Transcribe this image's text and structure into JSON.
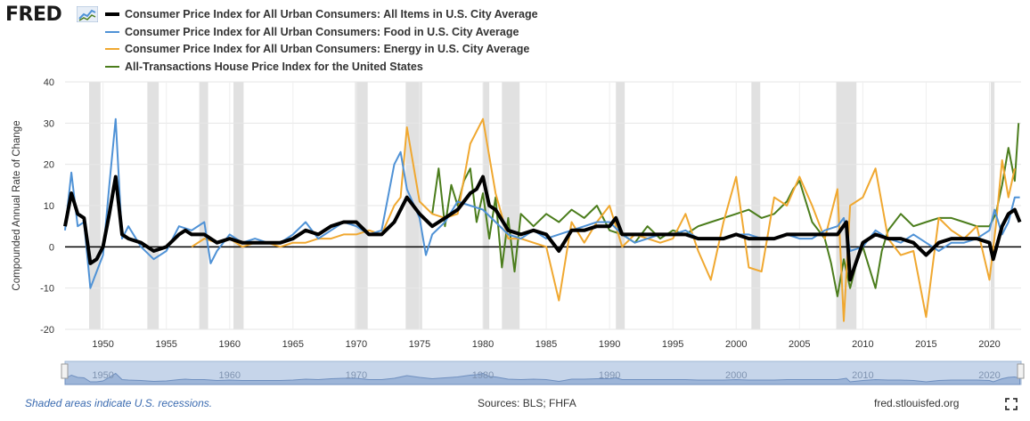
{
  "header": {
    "logo_text": "FRED",
    "logo_icon": "line-chart-icon"
  },
  "legend": [
    {
      "label": "Consumer Price Index for All Urban Consumers: All Items in U.S. City Average",
      "color": "#000000",
      "stroke": 4
    },
    {
      "label": "Consumer Price Index for All Urban Consumers: Food in U.S. City Average",
      "color": "#4f92d6",
      "stroke": 2
    },
    {
      "label": "Consumer Price Index for All Urban Consumers: Energy in U.S. City Average",
      "color": "#f0a830",
      "stroke": 2
    },
    {
      "label": "All-Transactions House Price Index for the United States",
      "color": "#4b7d1c",
      "stroke": 2
    }
  ],
  "footer": {
    "note": "Shaded areas indicate U.S. recessions.",
    "sources": "Sources: BLS; FHFA",
    "site": "fred.stlouisfed.org",
    "fullscreen_icon": "fullscreen-icon"
  },
  "navigator_labels": [
    "1950",
    "1960",
    "1970",
    "1980",
    "1990",
    "2000",
    "2010",
    "2020"
  ],
  "chart_data": {
    "type": "line",
    "ylabel": "Compounded Annual Rate of Change",
    "xlabel": "",
    "xlim": [
      1947.0,
      2022.5
    ],
    "ylim": [
      -20,
      40
    ],
    "yticks": [
      -20,
      -10,
      0,
      10,
      20,
      30,
      40
    ],
    "xticks": [
      1950,
      1955,
      1960,
      1965,
      1970,
      1975,
      1980,
      1985,
      1990,
      1995,
      2000,
      2005,
      2010,
      2015,
      2020
    ],
    "grid": true,
    "legend_position": "top",
    "recessions": [
      [
        1948.9,
        1949.8
      ],
      [
        1953.5,
        1954.4
      ],
      [
        1957.6,
        1958.3
      ],
      [
        1960.3,
        1961.1
      ],
      [
        1969.9,
        1970.9
      ],
      [
        1973.9,
        1975.2
      ],
      [
        1980.0,
        1980.5
      ],
      [
        1981.5,
        1982.9
      ],
      [
        1990.5,
        1991.2
      ],
      [
        2001.2,
        2001.9
      ],
      [
        2007.9,
        2009.5
      ],
      [
        2020.1,
        2020.4
      ]
    ],
    "series": [
      {
        "name": "Consumer Price Index for All Urban Consumers: All Items in U.S. City Average",
        "color": "#000000",
        "x": [
          1947.0,
          1947.5,
          1948.0,
          1948.5,
          1949.0,
          1949.5,
          1950.0,
          1950.5,
          1951.0,
          1951.5,
          1952.0,
          1953.0,
          1954.0,
          1955.0,
          1956.0,
          1956.5,
          1957.0,
          1958.0,
          1959.0,
          1960.0,
          1961.0,
          1962.0,
          1963.0,
          1964.0,
          1965.0,
          1966.0,
          1967.0,
          1968.0,
          1969.0,
          1970.0,
          1971.0,
          1972.0,
          1973.0,
          1973.5,
          1974.0,
          1975.0,
          1976.0,
          1977.0,
          1978.0,
          1979.0,
          1979.5,
          1980.0,
          1980.5,
          1981.0,
          1982.0,
          1983.0,
          1984.0,
          1985.0,
          1986.0,
          1987.0,
          1988.0,
          1989.0,
          1990.0,
          1990.5,
          1991.0,
          1992.0,
          1993.0,
          1994.0,
          1995.0,
          1996.0,
          1997.0,
          1998.0,
          1999.0,
          2000.0,
          2001.0,
          2002.0,
          2003.0,
          2004.0,
          2005.0,
          2006.0,
          2007.0,
          2008.0,
          2008.7,
          2009.0,
          2010.0,
          2011.0,
          2012.0,
          2013.0,
          2014.0,
          2015.0,
          2016.0,
          2017.0,
          2018.0,
          2019.0,
          2020.0,
          2020.3,
          2021.0,
          2021.5,
          2022.0,
          2022.4
        ],
        "y": [
          5,
          13,
          8,
          7,
          -4,
          -3,
          0,
          8,
          17,
          3,
          2,
          1,
          -1,
          0,
          3,
          4,
          3,
          3,
          1,
          2,
          1,
          1,
          1,
          1,
          2,
          4,
          3,
          5,
          6,
          6,
          3,
          3,
          6,
          9,
          12,
          8,
          5,
          7,
          9,
          13,
          14,
          17,
          10,
          9,
          4,
          3,
          4,
          3,
          -1,
          4,
          4,
          5,
          5,
          7,
          3,
          3,
          3,
          3,
          3,
          3,
          2,
          2,
          2,
          3,
          2,
          2,
          2,
          3,
          3,
          3,
          3,
          3,
          6,
          -8,
          1,
          3,
          2,
          2,
          1,
          -2,
          1,
          2,
          2,
          2,
          1,
          -3,
          5,
          8,
          9,
          6
        ]
      },
      {
        "name": "Consumer Price Index for All Urban Consumers: Food in U.S. City Average",
        "color": "#4f92d6",
        "x": [
          1947.0,
          1947.5,
          1948.0,
          1948.5,
          1949.0,
          1949.5,
          1950.0,
          1950.5,
          1951.0,
          1951.5,
          1952.0,
          1953.0,
          1954.0,
          1955.0,
          1956.0,
          1957.0,
          1958.0,
          1958.5,
          1959.0,
          1960.0,
          1961.0,
          1962.0,
          1963.0,
          1964.0,
          1965.0,
          1966.0,
          1967.0,
          1968.0,
          1969.0,
          1970.0,
          1971.0,
          1972.0,
          1973.0,
          1973.5,
          1974.0,
          1975.0,
          1975.5,
          1976.0,
          1977.0,
          1978.0,
          1979.0,
          1980.0,
          1981.0,
          1982.0,
          1983.0,
          1984.0,
          1985.0,
          1986.0,
          1987.0,
          1988.0,
          1989.0,
          1990.0,
          1991.0,
          1992.0,
          1993.0,
          1994.0,
          1995.0,
          1996.0,
          1997.0,
          1998.0,
          1999.0,
          2000.0,
          2001.0,
          2002.0,
          2003.0,
          2004.0,
          2005.0,
          2006.0,
          2007.0,
          2008.0,
          2008.5,
          2009.0,
          2010.0,
          2011.0,
          2012.0,
          2013.0,
          2014.0,
          2015.0,
          2016.0,
          2017.0,
          2018.0,
          2019.0,
          2020.0,
          2020.4,
          2021.0,
          2021.5,
          2022.0,
          2022.4
        ],
        "y": [
          4,
          18,
          5,
          6,
          -10,
          -6,
          -2,
          15,
          31,
          2,
          5,
          0,
          -3,
          -1,
          5,
          4,
          6,
          -4,
          -1,
          3,
          1,
          2,
          1,
          1,
          3,
          6,
          2,
          4,
          6,
          5,
          3,
          4,
          20,
          23,
          14,
          7,
          -2,
          3,
          6,
          11,
          10,
          9,
          6,
          3,
          2,
          4,
          2,
          3,
          4,
          5,
          6,
          6,
          3,
          1,
          2,
          3,
          3,
          4,
          2,
          2,
          2,
          3,
          3,
          2,
          2,
          3,
          2,
          2,
          4,
          5,
          7,
          -1,
          0,
          4,
          2,
          1,
          3,
          1,
          -1,
          1,
          1,
          2,
          4,
          9,
          3,
          6,
          12,
          12
        ]
      },
      {
        "name": "Consumer Price Index for All Urban Consumers: Energy in U.S. City Average",
        "color": "#f0a830",
        "x": [
          1957.0,
          1958.0,
          1959.0,
          1960.0,
          1961.0,
          1962.0,
          1963.0,
          1964.0,
          1965.0,
          1966.0,
          1967.0,
          1968.0,
          1969.0,
          1970.0,
          1971.0,
          1972.0,
          1973.0,
          1973.5,
          1974.0,
          1975.0,
          1976.0,
          1977.0,
          1978.0,
          1979.0,
          1980.0,
          1981.0,
          1982.0,
          1983.0,
          1984.0,
          1985.0,
          1986.0,
          1987.0,
          1988.0,
          1989.0,
          1990.0,
          1991.0,
          1992.0,
          1993.0,
          1994.0,
          1995.0,
          1996.0,
          1997.0,
          1998.0,
          1999.0,
          2000.0,
          2001.0,
          2002.0,
          2003.0,
          2004.0,
          2005.0,
          2006.0,
          2007.0,
          2008.0,
          2008.5,
          2009.0,
          2010.0,
          2011.0,
          2012.0,
          2013.0,
          2014.0,
          2015.0,
          2016.0,
          2017.0,
          2018.0,
          2019.0,
          2020.0,
          2020.5,
          2021.0,
          2021.5,
          2022.0
        ],
        "y": [
          0,
          2,
          1,
          2,
          0,
          1,
          1,
          0,
          1,
          1,
          2,
          2,
          3,
          3,
          4,
          3,
          10,
          12,
          29,
          11,
          8,
          7,
          8,
          25,
          31,
          13,
          2,
          2,
          1,
          0,
          -13,
          6,
          1,
          6,
          10,
          0,
          3,
          2,
          1,
          2,
          8,
          -1,
          -8,
          6,
          17,
          -5,
          -6,
          12,
          10,
          17,
          10,
          2,
          14,
          -18,
          10,
          12,
          19,
          2,
          -2,
          -1,
          -17,
          7,
          4,
          2,
          5,
          -8,
          5,
          21,
          12,
          19
        ]
      },
      {
        "name": "All-Transactions House Price Index for the United States",
        "color": "#4b7d1c",
        "x": [
          1976.0,
          1976.5,
          1977.0,
          1977.5,
          1978.0,
          1978.5,
          1979.0,
          1979.5,
          1980.0,
          1980.5,
          1981.0,
          1981.5,
          1982.0,
          1982.5,
          1983.0,
          1984.0,
          1985.0,
          1986.0,
          1987.0,
          1988.0,
          1989.0,
          1990.0,
          1991.0,
          1992.0,
          1993.0,
          1994.0,
          1995.0,
          1996.0,
          1997.0,
          1998.0,
          1999.0,
          2000.0,
          2001.0,
          2002.0,
          2003.0,
          2004.0,
          2004.5,
          2005.0,
          2006.0,
          2007.0,
          2007.5,
          2008.0,
          2008.5,
          2009.0,
          2009.5,
          2010.0,
          2011.0,
          2011.5,
          2012.0,
          2013.0,
          2014.0,
          2015.0,
          2016.0,
          2017.0,
          2018.0,
          2019.0,
          2020.0,
          2020.5,
          2021.0,
          2021.5,
          2022.0,
          2022.3
        ],
        "y": [
          8,
          19,
          5,
          15,
          10,
          16,
          19,
          6,
          13,
          2,
          12,
          -5,
          7,
          -6,
          8,
          5,
          8,
          6,
          9,
          7,
          10,
          4,
          3,
          1,
          5,
          2,
          4,
          3,
          5,
          6,
          7,
          8,
          9,
          7,
          8,
          11,
          14,
          16,
          6,
          2,
          -4,
          -12,
          -3,
          -10,
          -4,
          0,
          -10,
          -1,
          4,
          8,
          5,
          6,
          7,
          7,
          6,
          5,
          5,
          8,
          15,
          24,
          16,
          30
        ]
      }
    ]
  }
}
